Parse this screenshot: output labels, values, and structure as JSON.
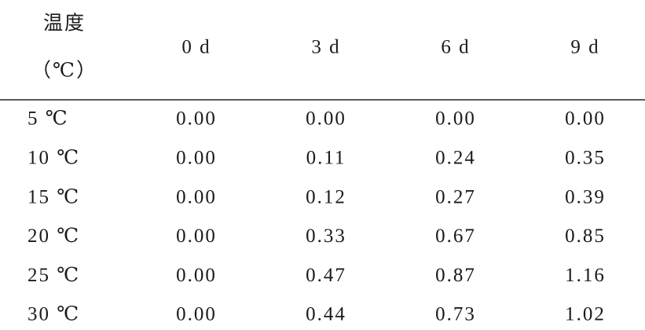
{
  "table": {
    "header_label": [
      "温度",
      "（℃）"
    ],
    "columns": [
      "0 d",
      "3 d",
      "6 d",
      "9 d"
    ],
    "rows": [
      [
        "5 ℃",
        "0.00",
        "0.00",
        "0.00",
        "0.00"
      ],
      [
        "10 ℃",
        "0.00",
        "0.11",
        "0.24",
        "0.35"
      ],
      [
        "15 ℃",
        "0.00",
        "0.12",
        "0.27",
        "0.39"
      ],
      [
        "20 ℃",
        "0.00",
        "0.33",
        "0.67",
        "0.85"
      ],
      [
        "25 ℃",
        "0.00",
        "0.47",
        "0.87",
        "1.16"
      ],
      [
        "30 ℃",
        "0.00",
        "0.44",
        "0.73",
        "1.02"
      ]
    ]
  }
}
